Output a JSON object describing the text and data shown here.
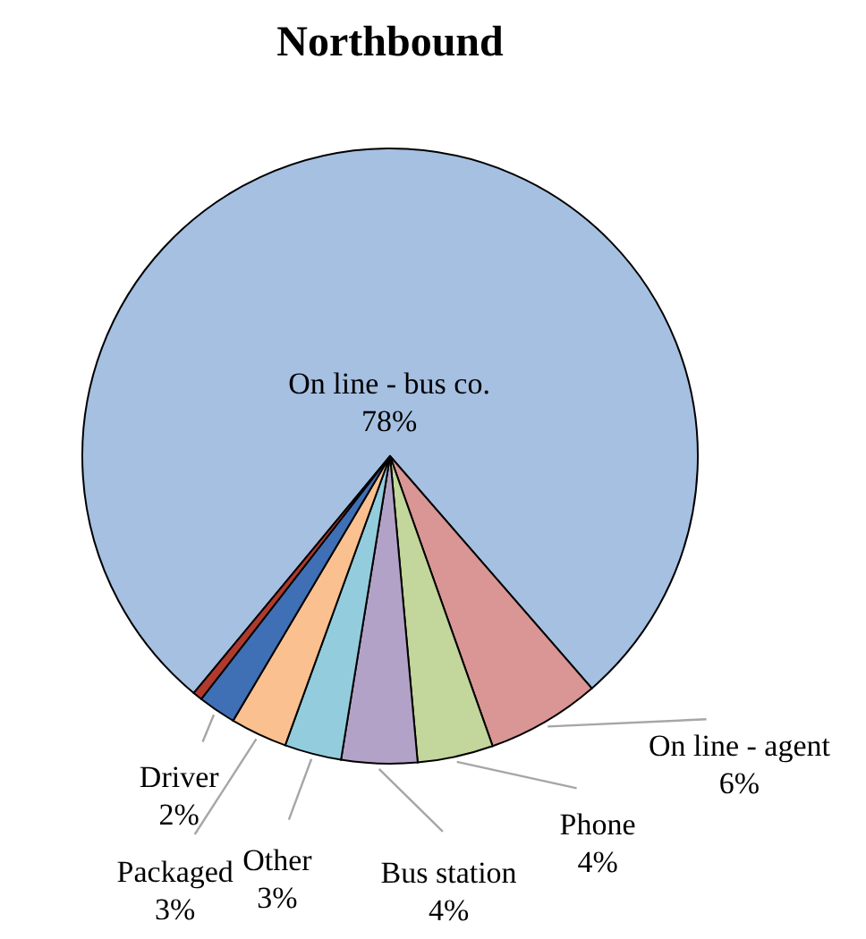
{
  "chart_data": {
    "type": "pie",
    "title": "Northbound",
    "categories": [
      "On line - bus co.",
      "On line - agent",
      "Phone",
      "Bus station",
      "Other",
      "Packaged",
      "Driver",
      null
    ],
    "values": [
      78,
      6,
      4,
      4,
      3,
      3,
      2,
      0.5
    ],
    "value_labels": [
      "78%",
      "6%",
      "4%",
      "4%",
      "3%",
      "3%",
      "2%",
      null
    ],
    "colors": [
      "#a6c0e2",
      "#d99694",
      "#c3d69b",
      "#b3a2c7",
      "#93cddd",
      "#fac08f",
      "#3f6fb5",
      "#b03a2e"
    ]
  }
}
